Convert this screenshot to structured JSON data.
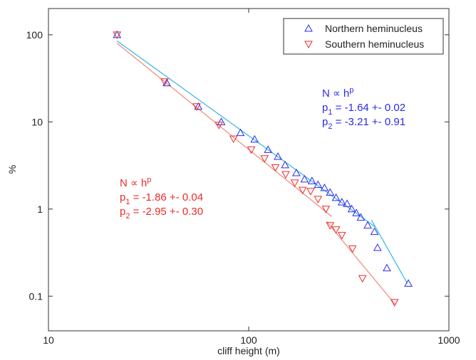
{
  "chart_data": {
    "type": "scatter",
    "log_x": true,
    "log_y": true,
    "xlabel": "cliff height (m)",
    "ylabel": "%",
    "xlim": [
      10,
      1000
    ],
    "xticks": [
      10,
      100,
      1000
    ],
    "ylim": [
      0.04,
      200
    ],
    "yticks": [
      0.1,
      1,
      10,
      100
    ],
    "legend": "top-right",
    "series": [
      {
        "name": "Northern heminucleus",
        "color": "#2a2aee",
        "marker": "triangle-up",
        "x": [
          22,
          39,
          56,
          73,
          91,
          107,
          125,
          140,
          152,
          173,
          190,
          207,
          222,
          239,
          255,
          273,
          292,
          310,
          327,
          345,
          363,
          393,
          425,
          440,
          490,
          627
        ],
        "values": [
          100,
          28,
          15,
          10,
          7.5,
          6.3,
          4.8,
          4,
          3.2,
          2.6,
          2.2,
          2.1,
          1.9,
          1.75,
          1.55,
          1.35,
          1.2,
          1.15,
          1,
          0.9,
          0.8,
          0.65,
          0.55,
          0.36,
          0.21,
          0.14
        ]
      },
      {
        "name": "Southern heminucleus",
        "color": "#ee2a2a",
        "marker": "triangle-down",
        "x": [
          22,
          38,
          55,
          71,
          84,
          103,
          120,
          136,
          153,
          170,
          186,
          204,
          222,
          243,
          255,
          273,
          292,
          330,
          370,
          535
        ],
        "values": [
          100,
          29,
          15,
          9.2,
          6.4,
          4.8,
          3.8,
          3,
          2.5,
          2,
          1.65,
          1.6,
          1.3,
          1,
          0.65,
          0.58,
          0.5,
          0.35,
          0.16,
          0.085
        ]
      }
    ],
    "fit_lines": [
      {
        "color": "#33b5e5",
        "x": [
          22,
          430
        ],
        "values": [
          85,
          0.62
        ]
      },
      {
        "color": "#33b5e5",
        "x": [
          410,
          620
        ],
        "values": [
          0.75,
          0.14
        ]
      },
      {
        "color": "#f08a78",
        "x": [
          22,
          260
        ],
        "values": [
          80,
          0.82
        ]
      },
      {
        "color": "#f08a78",
        "x": [
          245,
          540
        ],
        "values": [
          0.72,
          0.08
        ]
      }
    ],
    "annotations": [
      {
        "color": "#2a2aee",
        "lines": [
          {
            "text": "N ∝ h",
            "sup": "p"
          },
          {
            "text": "p",
            "sub": "1",
            "rest": " = -1.64 +- 0.02"
          },
          {
            "text": "p",
            "sub": "2",
            "rest": " = -3.21 +- 0.91"
          }
        ]
      },
      {
        "color": "#ee2a2a",
        "lines": [
          {
            "text": "N ∝ h",
            "sup": "p"
          },
          {
            "text": "p",
            "sub": "1",
            "rest": " = -1.86 +- 0.04"
          },
          {
            "text": "p",
            "sub": "2",
            "rest": " = -2.95 +- 0.30"
          }
        ]
      }
    ]
  }
}
